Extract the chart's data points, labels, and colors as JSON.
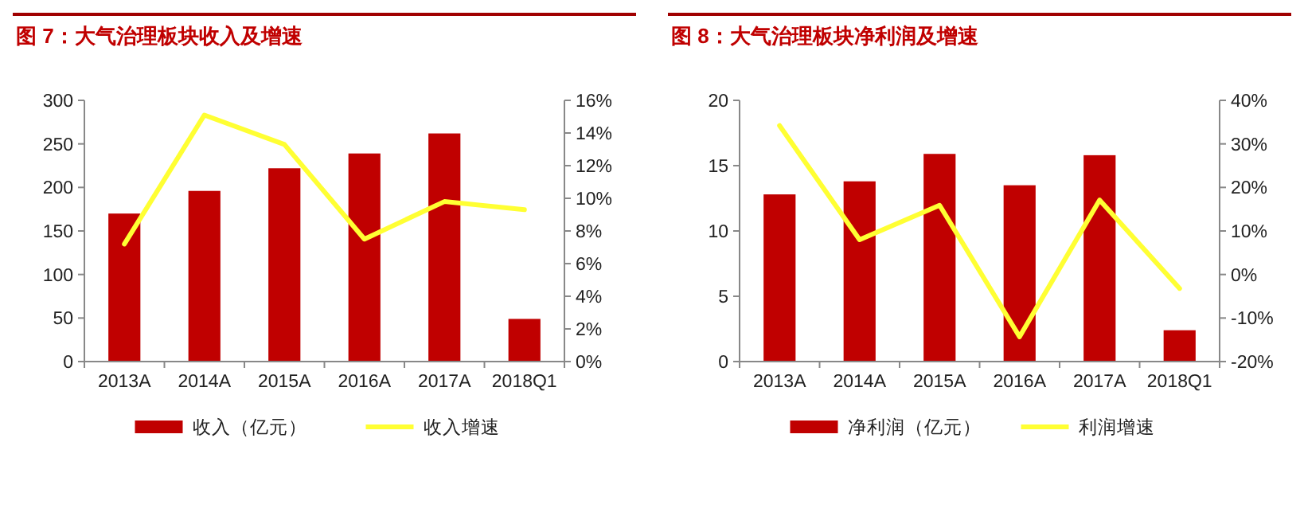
{
  "chart_data": [
    {
      "type": "bar",
      "title": "图 7：大气治理板块收入及增速",
      "categories": [
        "2013A",
        "2014A",
        "2015A",
        "2016A",
        "2017A",
        "2018Q1"
      ],
      "series": [
        {
          "name": "收入（亿元）",
          "color": "#c00000",
          "values": [
            170,
            196,
            222,
            239,
            262,
            49
          ]
        },
        {
          "name": "收入增速",
          "type": "line",
          "axis": "y2",
          "color": "#ffff33",
          "values": [
            7.2,
            15.1,
            13.3,
            7.5,
            9.8,
            9.3
          ]
        }
      ],
      "ylim": [
        0,
        300
      ],
      "yticks": [
        0,
        50,
        100,
        150,
        200,
        250,
        300
      ],
      "y2lim": [
        0,
        16
      ],
      "y2ticks": [
        {
          "value": 0,
          "label": "0%"
        },
        {
          "value": 2,
          "label": "2%"
        },
        {
          "value": 4,
          "label": "4%"
        },
        {
          "value": 6,
          "label": "6%"
        },
        {
          "value": 8,
          "label": "8%"
        },
        {
          "value": 10,
          "label": "10%"
        },
        {
          "value": 12,
          "label": "12%"
        },
        {
          "value": 14,
          "label": "14%"
        },
        {
          "value": 16,
          "label": "16%"
        }
      ],
      "legend": "bottom",
      "grid": false
    },
    {
      "type": "bar",
      "title": "图 8：大气治理板块净利润及增速",
      "categories": [
        "2013A",
        "2014A",
        "2015A",
        "2016A",
        "2017A",
        "2018Q1"
      ],
      "series": [
        {
          "name": "净利润（亿元）",
          "color": "#c00000",
          "values": [
            12.8,
            13.8,
            15.9,
            13.5,
            15.8,
            2.4
          ]
        },
        {
          "name": "利润增速",
          "type": "line",
          "axis": "y2",
          "color": "#ffff33",
          "values": [
            34.2,
            8,
            15.9,
            -14.3,
            17.1,
            -3.2
          ]
        }
      ],
      "ylim": [
        0,
        20
      ],
      "yticks": [
        0,
        5,
        10,
        15,
        20
      ],
      "y2lim": [
        -20,
        40
      ],
      "y2ticks": [
        {
          "value": -20,
          "label": "-20%"
        },
        {
          "value": -10,
          "label": "-10%"
        },
        {
          "value": 0,
          "label": "0%"
        },
        {
          "value": 10,
          "label": "10%"
        },
        {
          "value": 20,
          "label": "20%"
        },
        {
          "value": 30,
          "label": "30%"
        },
        {
          "value": 40,
          "label": "40%"
        }
      ],
      "legend": "bottom",
      "grid": false
    }
  ]
}
